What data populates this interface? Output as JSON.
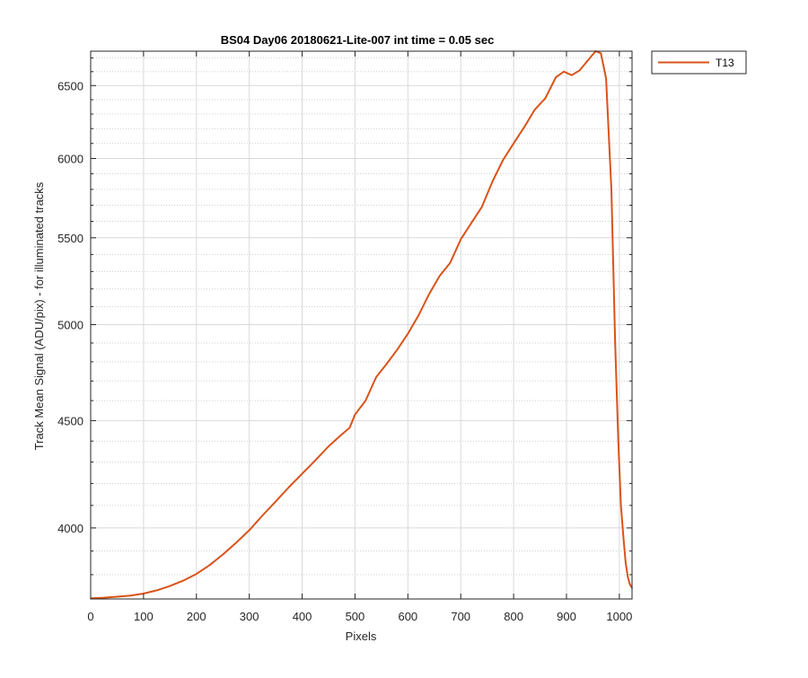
{
  "chart_data": {
    "type": "line",
    "title": "BS04 Day06 20180621-Lite-007 int time = 0.05 sec",
    "xlabel": "Pixels",
    "ylabel": "Track Mean Signal (ADU/pix) - for illuminated tracks",
    "yscale": "log",
    "xlim": [
      0,
      1024
    ],
    "ylim": [
      3700,
      6750
    ],
    "xticks": [
      0,
      100,
      200,
      300,
      400,
      500,
      600,
      700,
      800,
      900,
      1000
    ],
    "yticks": [
      4000,
      4500,
      5000,
      5500,
      6000,
      6500
    ],
    "grid": true,
    "legend_position": "outside-top-right",
    "series": [
      {
        "name": "T13",
        "color": "#D95319",
        "x": [
          0,
          25,
          50,
          75,
          100,
          125,
          150,
          175,
          200,
          225,
          250,
          275,
          300,
          325,
          350,
          375,
          400,
          425,
          450,
          475,
          490,
          500,
          520,
          540,
          560,
          580,
          600,
          620,
          640,
          660,
          680,
          700,
          720,
          740,
          760,
          780,
          800,
          820,
          840,
          860,
          880,
          895,
          910,
          925,
          940,
          955,
          965,
          975,
          985,
          992,
          998,
          1003,
          1008,
          1012,
          1016,
          1020,
          1024
        ],
        "y": [
          3703,
          3705,
          3709,
          3714,
          3722,
          3735,
          3753,
          3775,
          3803,
          3840,
          3885,
          3935,
          3990,
          4055,
          4118,
          4183,
          4245,
          4308,
          4375,
          4432,
          4465,
          4530,
          4600,
          4720,
          4790,
          4865,
          4950,
          5050,
          5170,
          5275,
          5350,
          5490,
          5590,
          5690,
          5850,
          5990,
          6100,
          6210,
          6330,
          6410,
          6560,
          6600,
          6575,
          6610,
          6680,
          6750,
          6735,
          6550,
          5800,
          4900,
          4400,
          4100,
          3950,
          3850,
          3790,
          3760,
          3745
        ]
      }
    ]
  }
}
